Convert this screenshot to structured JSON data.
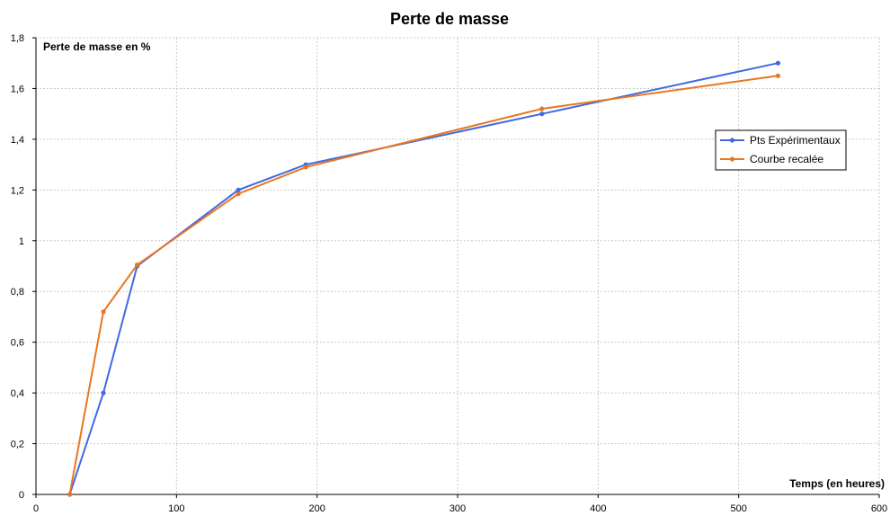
{
  "chart_data": {
    "type": "line",
    "title": "Perte de masse",
    "xlabel": "Temps (en heures)",
    "ylabel": "Perte de masse en %",
    "xlim": [
      0,
      600
    ],
    "ylim": [
      0,
      1.8
    ],
    "xticks": [
      0,
      100,
      200,
      300,
      400,
      500,
      600
    ],
    "yticks": [
      0,
      0.2,
      0.4,
      0.6,
      0.8,
      1,
      1.2,
      1.4,
      1.6,
      1.8
    ],
    "xtick_labels": [
      "0",
      "100",
      "200",
      "300",
      "400",
      "500",
      "600"
    ],
    "ytick_labels": [
      "0",
      "0,2",
      "0,4",
      "0,6",
      "0,8",
      "1",
      "1,2",
      "1,4",
      "1,6",
      "1,8"
    ],
    "grid": true,
    "legend_position": "right",
    "series": [
      {
        "name": "Pts Expérimentaux",
        "color": "#4169e1",
        "x": [
          24,
          48,
          72,
          144,
          192,
          360,
          528
        ],
        "y": [
          0,
          0.4,
          0.9,
          1.2,
          1.3,
          1.5,
          1.7
        ]
      },
      {
        "name": "Courbe recalée",
        "color": "#e87722",
        "x": [
          24,
          48,
          72,
          144,
          192,
          360,
          528
        ],
        "y": [
          0,
          0.72,
          0.905,
          1.185,
          1.29,
          1.52,
          1.65
        ]
      }
    ]
  }
}
